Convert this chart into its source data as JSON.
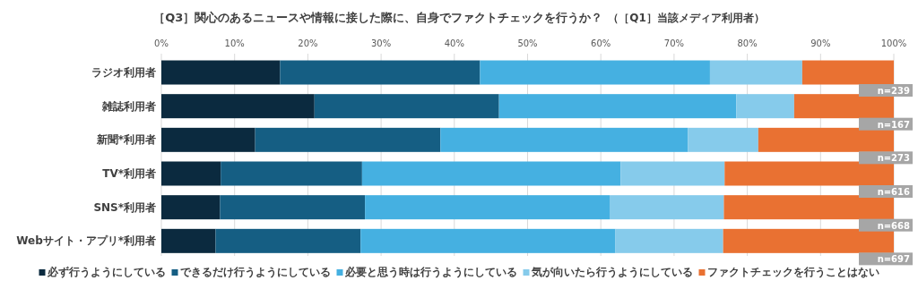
{
  "chart_data": {
    "type": "bar",
    "orientation": "horizontal",
    "stacked": true,
    "title": "［Q3］関心のあるニュースや情報に接した際に、自身でファクトチェックを行うか？",
    "subtitle": "（［Q1］当該メディア利用者）",
    "categories": [
      "ラジオ利用者",
      "雑誌利用者",
      "新聞*利用者",
      "TV*利用者",
      "SNS*利用者",
      "Webサイト・アプリ*利用者"
    ],
    "series": [
      {
        "name": "必ず行うようにしている",
        "color": "#0b2a3f",
        "values": [
          16.2,
          20.9,
          12.8,
          8.1,
          8.0,
          7.4
        ]
      },
      {
        "name": "できるだけ行うようにしている",
        "color": "#155e83",
        "values": [
          27.3,
          25.2,
          25.3,
          19.3,
          19.8,
          19.8
        ]
      },
      {
        "name": "必要と思う時は行うようにしている",
        "color": "#45b0e1",
        "values": [
          31.4,
          32.4,
          33.8,
          35.3,
          33.4,
          34.8
        ]
      },
      {
        "name": "気が向いたら行うようにしている",
        "color": "#86cbeb",
        "values": [
          12.6,
          7.9,
          9.6,
          14.2,
          15.6,
          14.7
        ]
      },
      {
        "name": "ファクトチェックを行うことはない",
        "color": "#e97132",
        "values": [
          12.5,
          13.6,
          18.5,
          23.1,
          23.2,
          23.3
        ]
      }
    ],
    "xlim": [
      0,
      100
    ],
    "xticks": [
      {
        "value": 0,
        "label": "0%"
      },
      {
        "value": 10,
        "label": "10%"
      },
      {
        "value": 20,
        "label": "20%"
      },
      {
        "value": 30,
        "label": "30%"
      },
      {
        "value": 40,
        "label": "40%"
      },
      {
        "value": 50,
        "label": "50%"
      },
      {
        "value": 60,
        "label": "60%"
      },
      {
        "value": 70,
        "label": "70%"
      },
      {
        "value": 80,
        "label": "80%"
      },
      {
        "value": 90,
        "label": "90%"
      },
      {
        "value": 100,
        "label": "100%"
      }
    ],
    "grid": "x",
    "legend": "bottom",
    "annotations": [
      "n=239",
      "n=167",
      "n=273",
      "n=616",
      "n=668",
      "n=697"
    ]
  }
}
